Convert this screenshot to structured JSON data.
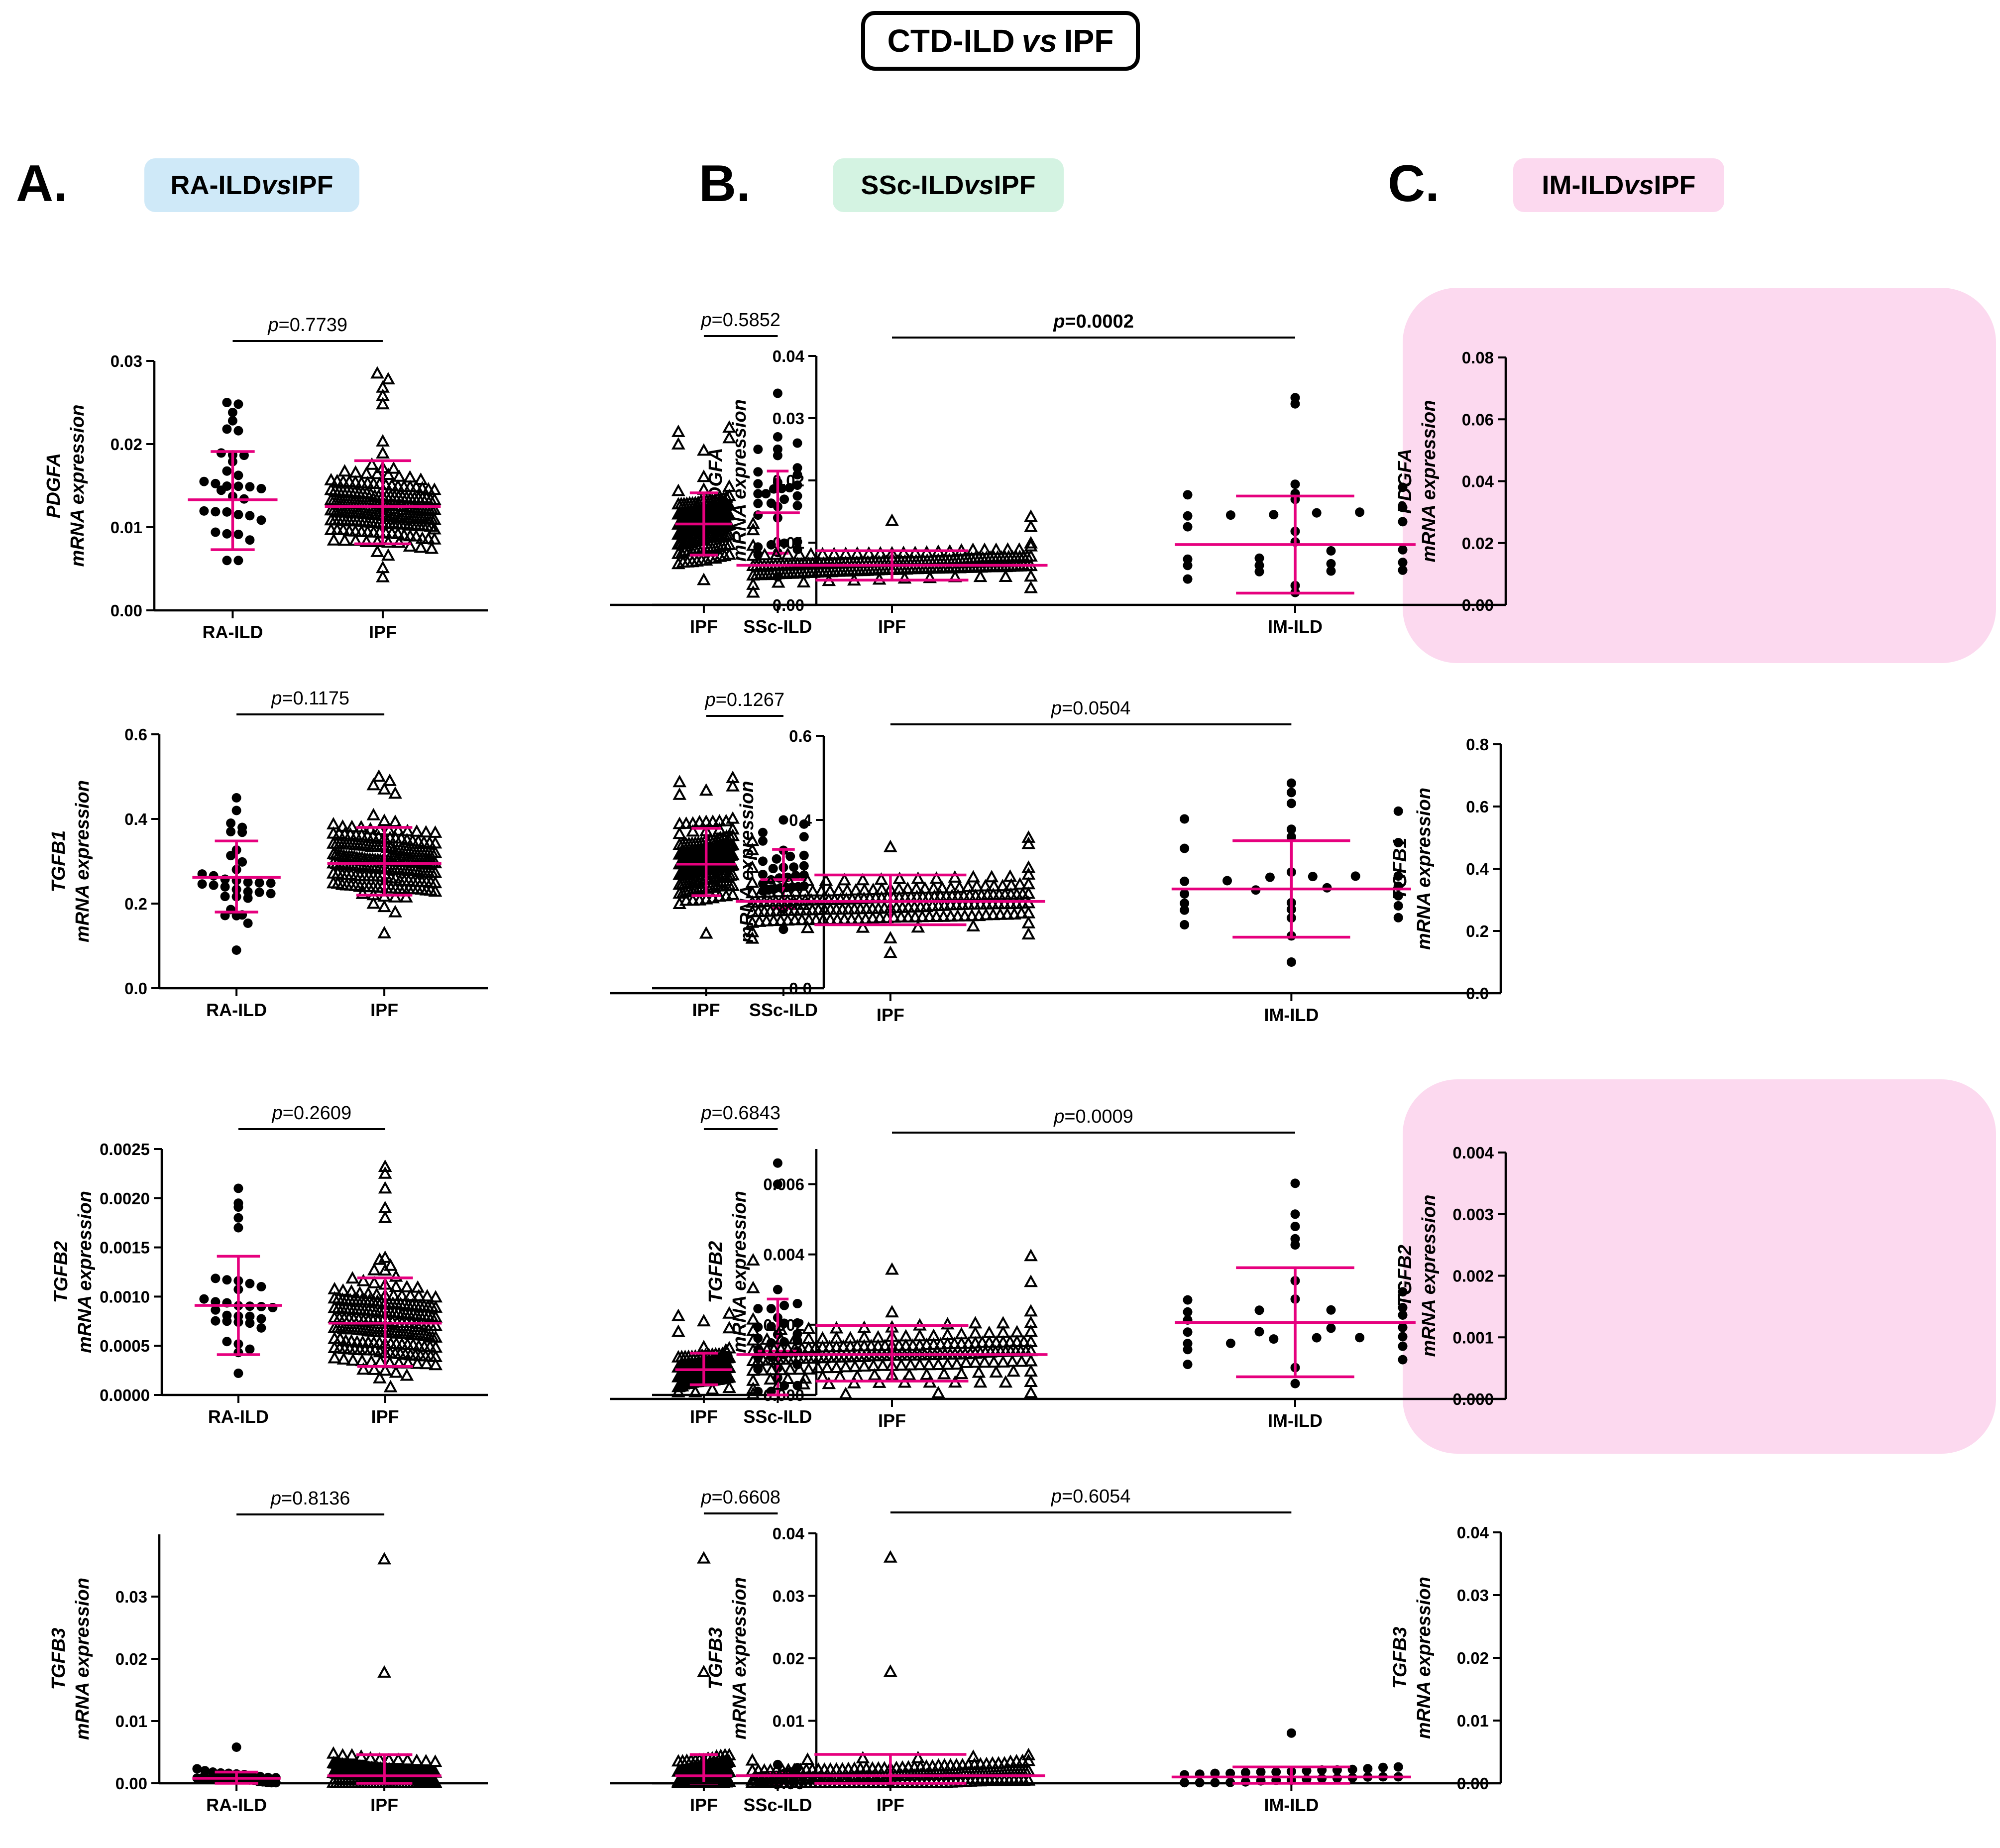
{
  "title": {
    "a": "CTD-ILD ",
    "vs": "vs",
    "b": " IPF"
  },
  "columns": [
    {
      "letter": "A.",
      "a": "RA-ILD ",
      "vs": "vs",
      "b": " IPF",
      "bg": "#cfe9f8"
    },
    {
      "letter": "B.",
      "a": "SSc-ILD ",
      "vs": "vs",
      "b": " IPF",
      "bg": "#d4f3e2"
    },
    {
      "letter": "C.",
      "a": "IM-ILD ",
      "vs": "vs",
      "b": " IPF",
      "bg": "#fcd9ef"
    }
  ],
  "colors": {
    "error_bars": "#e6007e",
    "highlight": "#fcd9ef",
    "points": "#000000"
  },
  "chart_data": [
    {
      "id": "A1",
      "type": "scatter",
      "gene": "PDGFA",
      "ylabel_suffix": "mRNA expression",
      "categories": [
        "RA-ILD",
        "IPF"
      ],
      "ylim": [
        0,
        0.03
      ],
      "yticks": [
        0,
        0.01,
        0.02,
        0.03
      ],
      "ytick_labels": [
        "0.00",
        "0.01",
        "0.02",
        "0.03"
      ],
      "p_prefix": "p",
      "p_value": "=0.7739",
      "p_bold": false,
      "highlight": false,
      "groups": [
        {
          "name": "RA-ILD",
          "marker": "circle",
          "n": 32,
          "mean": 0.0133,
          "sd_low": 0.0073,
          "sd_high": 0.0191,
          "min": 0.006,
          "max": 0.025,
          "top": [
            0.025,
            0.0248,
            0.0238,
            0.0228,
            0.0218
          ]
        },
        {
          "name": "IPF",
          "marker": "triangle",
          "n": 200,
          "mean": 0.0125,
          "sd_low": 0.008,
          "sd_high": 0.018,
          "min": 0.004,
          "max": 0.0285,
          "top": [
            0.0285,
            0.0278,
            0.0268,
            0.0258,
            0.0248
          ]
        }
      ]
    },
    {
      "id": "B1",
      "type": "scatter",
      "gene": "PDGFA",
      "ylabel_suffix": "mRNA expression",
      "categories": [
        "SSc-ILD",
        "IPF"
      ],
      "ylim": [
        0,
        0.04
      ],
      "yticks": [
        0,
        0.01,
        0.02,
        0.03,
        0.04
      ],
      "ytick_labels": [
        "0.00",
        "0.01",
        "0.02",
        "0.03",
        "0.04"
      ],
      "p_prefix": "p",
      "p_value": "=0.5852",
      "p_bold": false,
      "highlight": false,
      "groups": [
        {
          "name": "SSc-ILD",
          "marker": "circle",
          "n": 32,
          "mean": 0.0148,
          "sd_low": 0.0083,
          "sd_high": 0.0215,
          "min": 0.0045,
          "max": 0.034,
          "top": [
            0.034,
            0.027,
            0.026,
            0.025,
            0.024
          ]
        },
        {
          "name": "IPF",
          "marker": "triangle",
          "n": 200,
          "mean": 0.013,
          "sd_low": 0.008,
          "sd_high": 0.018,
          "min": 0.004,
          "max": 0.0285,
          "top": [
            0.0285,
            0.0278,
            0.0268,
            0.0258,
            0.0248
          ]
        }
      ]
    },
    {
      "id": "C1",
      "type": "scatter",
      "gene": "PDGFA",
      "ylabel_suffix": "mRNA expression",
      "categories": [
        "IM-ILD",
        "IPF"
      ],
      "ylim": [
        0,
        0.08
      ],
      "yticks": [
        0,
        0.02,
        0.04,
        0.06,
        0.08
      ],
      "ytick_labels": [
        "0.00",
        "0.02",
        "0.04",
        "0.06",
        "0.08"
      ],
      "p_prefix": "p",
      "p_value": "=0.0002",
      "p_bold": true,
      "highlight": true,
      "groups": [
        {
          "name": "IM-ILD",
          "marker": "circle",
          "n": 30,
          "mean": 0.0195,
          "sd_low": 0.0038,
          "sd_high": 0.0352,
          "min": 0.004,
          "max": 0.067,
          "top": [
            0.067,
            0.065,
            0.039,
            0.038,
            0.036
          ]
        },
        {
          "name": "IPF",
          "marker": "triangle",
          "n": 200,
          "mean": 0.0128,
          "sd_low": 0.008,
          "sd_high": 0.0175,
          "min": 0.004,
          "max": 0.0285,
          "top": [
            0.0285,
            0.0272,
            0.0262,
            0.0252,
            0.0242
          ]
        }
      ]
    },
    {
      "id": "A2",
      "type": "scatter",
      "gene": "TGFB1",
      "ylabel_suffix": "mRNA expression",
      "categories": [
        "RA-ILD",
        "IPF"
      ],
      "ylim": [
        0,
        0.6
      ],
      "yticks": [
        0,
        0.2,
        0.4,
        0.6
      ],
      "ytick_labels": [
        "0.0",
        "0.2",
        "0.4",
        "0.6"
      ],
      "p_prefix": "p",
      "p_value": "=0.1175",
      "p_bold": false,
      "highlight": false,
      "groups": [
        {
          "name": "RA-ILD",
          "marker": "circle",
          "n": 32,
          "mean": 0.262,
          "sd_low": 0.18,
          "sd_high": 0.348,
          "min": 0.09,
          "max": 0.45,
          "top": [
            0.45,
            0.42,
            0.39,
            0.38,
            0.37
          ]
        },
        {
          "name": "IPF",
          "marker": "triangle",
          "n": 200,
          "mean": 0.295,
          "sd_low": 0.22,
          "sd_high": 0.38,
          "min": 0.13,
          "max": 0.5,
          "top": [
            0.5,
            0.49,
            0.48,
            0.47,
            0.46
          ]
        }
      ]
    },
    {
      "id": "B2",
      "type": "scatter",
      "gene": "TGFB1",
      "ylabel_suffix": "mRNA expression",
      "categories": [
        "SSc-ILD",
        "IPF"
      ],
      "ylim": [
        0,
        0.6
      ],
      "yticks": [
        0,
        0.2,
        0.4,
        0.6
      ],
      "ytick_labels": [
        "0.0",
        "0.2",
        "0.4",
        "0.6"
      ],
      "p_prefix": "p",
      "p_value": "=0.1267",
      "p_bold": false,
      "highlight": false,
      "groups": [
        {
          "name": "SSc-ILD",
          "marker": "circle",
          "n": 30,
          "mean": 0.258,
          "sd_low": 0.19,
          "sd_high": 0.33,
          "min": 0.14,
          "max": 0.4,
          "top": [
            0.4,
            0.39,
            0.37,
            0.36,
            0.35
          ]
        },
        {
          "name": "IPF",
          "marker": "triangle",
          "n": 200,
          "mean": 0.295,
          "sd_low": 0.22,
          "sd_high": 0.38,
          "min": 0.13,
          "max": 0.5,
          "top": [
            0.5,
            0.49,
            0.48,
            0.47,
            0.46
          ]
        }
      ]
    },
    {
      "id": "C2",
      "type": "scatter",
      "gene": "TGFB1",
      "ylabel_suffix": "mRNA expression",
      "categories": [
        "IM-ILD",
        "IPF"
      ],
      "ylim": [
        0,
        0.8
      ],
      "yticks": [
        0,
        0.2,
        0.4,
        0.6,
        0.8
      ],
      "ytick_labels": [
        "0.0",
        "0.2",
        "0.4",
        "0.6",
        "0.8"
      ],
      "p_prefix": "p",
      "p_value": "=0.0504",
      "p_bold": false,
      "highlight": false,
      "groups": [
        {
          "name": "IM-ILD",
          "marker": "circle",
          "n": 30,
          "mean": 0.335,
          "sd_low": 0.18,
          "sd_high": 0.49,
          "min": 0.1,
          "max": 0.675,
          "top": [
            0.675,
            0.645,
            0.61,
            0.585,
            0.56
          ]
        },
        {
          "name": "IPF",
          "marker": "triangle",
          "n": 200,
          "mean": 0.295,
          "sd_low": 0.22,
          "sd_high": 0.38,
          "min": 0.13,
          "max": 0.5,
          "top": [
            0.5,
            0.49,
            0.48,
            0.47,
            0.46
          ]
        }
      ]
    },
    {
      "id": "A3",
      "type": "scatter",
      "gene": "TGFB2",
      "ylabel_suffix": "mRNA expression",
      "categories": [
        "RA-ILD",
        "IPF"
      ],
      "ylim": [
        0,
        0.0025
      ],
      "yticks": [
        0,
        0.0005,
        0.001,
        0.0015,
        0.002,
        0.0025
      ],
      "ytick_labels": [
        "0.0000",
        "0.0005",
        "0.0010",
        "0.0015",
        "0.0020",
        "0.0025"
      ],
      "p_prefix": "p",
      "p_value": "=0.2609",
      "p_bold": false,
      "highlight": false,
      "groups": [
        {
          "name": "RA-ILD",
          "marker": "circle",
          "n": 32,
          "mean": 0.00091,
          "sd_low": 0.00041,
          "sd_high": 0.00141,
          "min": 0.00022,
          "max": 0.0021,
          "top": [
            0.0021,
            0.00195,
            0.00191,
            0.0018,
            0.0017
          ]
        },
        {
          "name": "IPF",
          "marker": "triangle",
          "n": 200,
          "mean": 0.00073,
          "sd_low": 0.00029,
          "sd_high": 0.00119,
          "min": 8e-05,
          "max": 0.00232,
          "top": [
            0.00232,
            0.00225,
            0.0021,
            0.0019,
            0.0018
          ]
        }
      ]
    },
    {
      "id": "B3",
      "type": "scatter",
      "gene": "TGFB2",
      "ylabel_suffix": "mRNA expression",
      "categories": [
        "SSc-ILD",
        "IPF"
      ],
      "ylim": [
        0,
        0.007
      ],
      "yticks": [
        0,
        0.002,
        0.004,
        0.006
      ],
      "ytick_labels": [
        "0.000",
        "0.002",
        "0.004",
        "0.006"
      ],
      "p_prefix": "p",
      "p_value": "=0.6843",
      "p_bold": false,
      "highlight": false,
      "groups": [
        {
          "name": "SSc-ILD",
          "marker": "circle",
          "n": 30,
          "mean": 0.00125,
          "sd_low": 0.0,
          "sd_high": 0.00273,
          "min": 0.0001,
          "max": 0.0066,
          "top": [
            0.0066,
            0.006,
            0.003,
            0.0026,
            0.0022
          ]
        },
        {
          "name": "IPF",
          "marker": "triangle",
          "n": 200,
          "mean": 0.00072,
          "sd_low": 0.00029,
          "sd_high": 0.00119,
          "min": 8e-05,
          "max": 0.00232,
          "top": [
            0.00232,
            0.00225,
            0.0021,
            0.0019,
            0.0018
          ]
        }
      ]
    },
    {
      "id": "C3",
      "type": "scatter",
      "gene": "TGFB2",
      "ylabel_suffix": "mRNA expression",
      "categories": [
        "IM-ILD",
        "IPF"
      ],
      "ylim": [
        0,
        0.004
      ],
      "yticks": [
        0,
        0.001,
        0.002,
        0.003,
        0.004
      ],
      "ytick_labels": [
        "0.000",
        "0.001",
        "0.002",
        "0.003",
        "0.004"
      ],
      "p_prefix": "p",
      "p_value": "=0.0009",
      "p_bold": false,
      "highlight": true,
      "groups": [
        {
          "name": "IM-ILD",
          "marker": "circle",
          "n": 30,
          "mean": 0.00124,
          "sd_low": 0.00036,
          "sd_high": 0.00213,
          "min": 0.00025,
          "max": 0.0035,
          "top": [
            0.0035,
            0.003,
            0.0028,
            0.0026,
            0.0025
          ]
        },
        {
          "name": "IPF",
          "marker": "triangle",
          "n": 200,
          "mean": 0.00072,
          "sd_low": 0.00029,
          "sd_high": 0.00119,
          "min": 8e-05,
          "max": 0.00232,
          "top": [
            0.00232,
            0.00225,
            0.0021,
            0.0019,
            0.0018
          ]
        }
      ]
    },
    {
      "id": "A4",
      "type": "scatter",
      "gene": "TGFB3",
      "ylabel_suffix": "mRNA expression",
      "categories": [
        "RA-ILD",
        "IPF"
      ],
      "ylim": [
        0,
        0.04
      ],
      "yticks": [
        0,
        0.01,
        0.02,
        0.03
      ],
      "ytick_labels": [
        "0.00",
        "0.01",
        "0.02",
        "0.03"
      ],
      "p_prefix": "p",
      "p_value": "=0.8136",
      "p_bold": false,
      "highlight": false,
      "groups": [
        {
          "name": "RA-ILD",
          "marker": "circle",
          "n": 30,
          "mean": 0.0008,
          "sd_low": 0.0,
          "sd_high": 0.0018,
          "min": 0.0001,
          "max": 0.0058,
          "top": [
            0.0058,
            0.0018,
            0.0016,
            0.0015,
            0.0014
          ]
        },
        {
          "name": "IPF",
          "marker": "triangle",
          "n": 200,
          "mean": 0.0012,
          "sd_low": 0.0,
          "sd_high": 0.0046,
          "min": 0.0001,
          "max": 0.036,
          "top": [
            0.036,
            0.0178,
            0.0045,
            0.004,
            0.0032
          ]
        }
      ]
    },
    {
      "id": "B4",
      "type": "scatter",
      "gene": "TGFB3",
      "ylabel_suffix": "mRNA expression",
      "categories": [
        "SSc-ILD",
        "IPF"
      ],
      "ylim": [
        0,
        0.04
      ],
      "yticks": [
        0,
        0.01,
        0.02,
        0.03,
        0.04
      ],
      "ytick_labels": [
        "0.00",
        "0.01",
        "0.02",
        "0.03",
        "0.04"
      ],
      "p_prefix": "p",
      "p_value": "=0.6608",
      "p_bold": false,
      "highlight": false,
      "groups": [
        {
          "name": "SSc-ILD",
          "marker": "circle",
          "n": 30,
          "mean": 0.0008,
          "sd_low": 0.0,
          "sd_high": 0.0016,
          "min": 0.0001,
          "max": 0.003,
          "top": [
            0.003,
            0.0025,
            0.002,
            0.0018,
            0.0016
          ]
        },
        {
          "name": "IPF",
          "marker": "triangle",
          "n": 200,
          "mean": 0.0012,
          "sd_low": 0.0,
          "sd_high": 0.0046,
          "min": 0.0001,
          "max": 0.036,
          "top": [
            0.036,
            0.0178,
            0.0045,
            0.004,
            0.0032
          ]
        }
      ]
    },
    {
      "id": "C4",
      "type": "scatter",
      "gene": "TGFB3",
      "ylabel_suffix": "mRNA expression",
      "categories": [
        "IM-ILD",
        "IPF"
      ],
      "ylim": [
        0,
        0.04
      ],
      "yticks": [
        0,
        0.01,
        0.02,
        0.03,
        0.04
      ],
      "ytick_labels": [
        "0.00",
        "0.01",
        "0.02",
        "0.03",
        "0.04"
      ],
      "p_prefix": "p",
      "p_value": "=0.6054",
      "p_bold": false,
      "highlight": false,
      "groups": [
        {
          "name": "IM-ILD",
          "marker": "circle",
          "n": 30,
          "mean": 0.001,
          "sd_low": 0.0,
          "sd_high": 0.0026,
          "min": 0.0001,
          "max": 0.008,
          "top": [
            0.008,
            0.0026,
            0.0022,
            0.002,
            0.0018
          ]
        },
        {
          "name": "IPF",
          "marker": "triangle",
          "n": 200,
          "mean": 0.0012,
          "sd_low": 0.0,
          "sd_high": 0.0046,
          "min": 0.0001,
          "max": 0.036,
          "top": [
            0.036,
            0.0178,
            0.0045,
            0.004,
            0.0032
          ]
        }
      ]
    }
  ]
}
